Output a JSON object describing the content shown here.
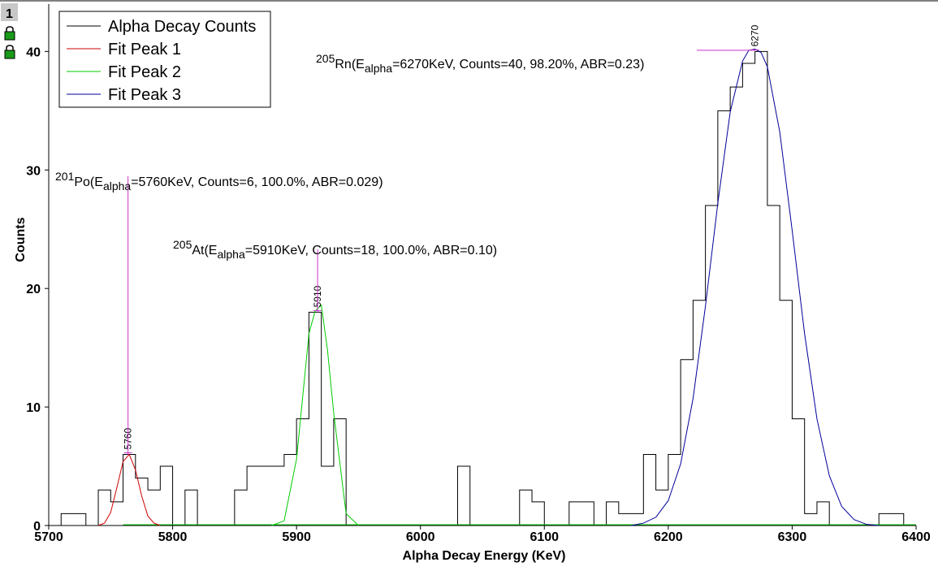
{
  "layer_badge": "1",
  "lock_icons": [
    "lock-icon",
    "lock-icon"
  ],
  "colors": {
    "counts": "#000000",
    "fit1": "#cc0000",
    "fit2": "#00cc00",
    "fit3": "#000099",
    "annotation_line": "#cc33cc",
    "badge_bg": "#c8c8c8",
    "lock_green": "#1a9a1a"
  },
  "chart_data": {
    "type": "line",
    "xlabel": "Alpha Decay Energy (KeV)",
    "ylabel": "Counts",
    "xlim": [
      5700,
      6400
    ],
    "ylim": [
      0,
      44
    ],
    "xticks": [
      "5700",
      "5800",
      "5900",
      "6000",
      "6100",
      "6200",
      "6300",
      "6400"
    ],
    "yticks": [
      "0",
      "10",
      "20",
      "30",
      "40"
    ],
    "grid": false,
    "legend_position": "top-left",
    "histogram": {
      "name": "Alpha Decay Counts",
      "bin_edges": [
        5710,
        5720,
        5730,
        5740,
        5750,
        5760,
        5770,
        5780,
        5790,
        5800,
        5810,
        5820,
        5830,
        5840,
        5850,
        5860,
        5870,
        5880,
        5890,
        5900,
        5910,
        5920,
        5930,
        5940,
        5950,
        5960,
        5970,
        5980,
        5990,
        6000,
        6010,
        6020,
        6030,
        6040,
        6050,
        6060,
        6070,
        6080,
        6090,
        6100,
        6110,
        6120,
        6130,
        6140,
        6150,
        6160,
        6170,
        6180,
        6190,
        6200,
        6210,
        6220,
        6230,
        6240,
        6250,
        6260,
        6270,
        6280,
        6290,
        6300,
        6310,
        6320,
        6330,
        6340,
        6350,
        6360,
        6370,
        6380,
        6390,
        6400
      ],
      "counts": [
        1,
        1,
        0,
        3,
        2,
        6,
        4,
        3,
        5,
        0,
        3,
        0,
        0,
        0,
        3,
        5,
        5,
        5,
        6,
        9,
        18,
        5,
        9,
        0,
        0,
        0,
        0,
        0,
        0,
        0,
        0,
        0,
        5,
        0,
        0,
        0,
        0,
        3,
        2,
        0,
        0,
        2,
        2,
        0,
        2,
        1,
        1,
        6,
        3,
        6,
        14,
        19,
        27,
        35,
        37,
        39,
        40,
        27,
        19,
        9,
        1,
        2,
        0,
        0,
        0,
        0,
        1,
        1,
        0
      ]
    },
    "series": [
      {
        "name": "Fit Peak 1",
        "x": [
          5740,
          5745,
          5750,
          5755,
          5760,
          5765,
          5770,
          5775,
          5780,
          5785,
          5790
        ],
        "values": [
          0,
          0.2,
          1.1,
          3.2,
          5.4,
          6.0,
          4.7,
          2.5,
          0.8,
          0.2,
          0
        ]
      },
      {
        "name": "Fit Peak 2",
        "x": [
          5880,
          5890,
          5900,
          5905,
          5910,
          5915,
          5920,
          5925,
          5930,
          5940,
          5950
        ],
        "values": [
          0,
          0.4,
          5.6,
          10.9,
          16.2,
          18.1,
          18.6,
          14.8,
          9.5,
          1.0,
          0
        ]
      },
      {
        "name": "Fit Peak 3",
        "x": [
          6170,
          6180,
          6190,
          6200,
          6210,
          6220,
          6230,
          6240,
          6250,
          6260,
          6265,
          6270,
          6275,
          6280,
          6290,
          6300,
          6310,
          6320,
          6330,
          6340,
          6350,
          6360,
          6370
        ],
        "values": [
          0,
          0.2,
          0.7,
          2.1,
          5.2,
          10.7,
          18.5,
          27.2,
          34.9,
          39.2,
          40.1,
          40.2,
          39.9,
          38.7,
          33.2,
          24.9,
          16.2,
          9.0,
          4.2,
          1.6,
          0.5,
          0.1,
          0
        ]
      }
    ],
    "peak_markers": [
      {
        "label": "5760",
        "x": 5764,
        "y": 6
      },
      {
        "label": "5910",
        "x": 5917,
        "y": 18
      },
      {
        "label": "6270",
        "x": 6270,
        "y": 40
      }
    ],
    "annotations": [
      {
        "isotope_mass": "201",
        "element": "Po",
        "energy_symbol": "E",
        "energy_sub": "alpha",
        "rest": "=5760KeV, Counts=6, 100.0%, ABR=0.029)",
        "line_x": 5764,
        "line_y_top": 29.5,
        "line_y_bottom": 6
      },
      {
        "isotope_mass": "205",
        "element": "At",
        "energy_symbol": "E",
        "energy_sub": "alpha",
        "rest": "=5910KeV, Counts=18, 100.0%, ABR=0.10)",
        "line_x": 5917,
        "line_y_top": 23.3,
        "line_y_bottom": 18
      },
      {
        "isotope_mass": "205",
        "element": "Rn",
        "energy_symbol": "E",
        "energy_sub": "alpha",
        "rest": "=6270KeV, Counts=40, 98.20%, ABR=0.23)",
        "line_x": 6270,
        "line_y_top": 40.1,
        "line_y_bottom": 40.1
      }
    ]
  }
}
